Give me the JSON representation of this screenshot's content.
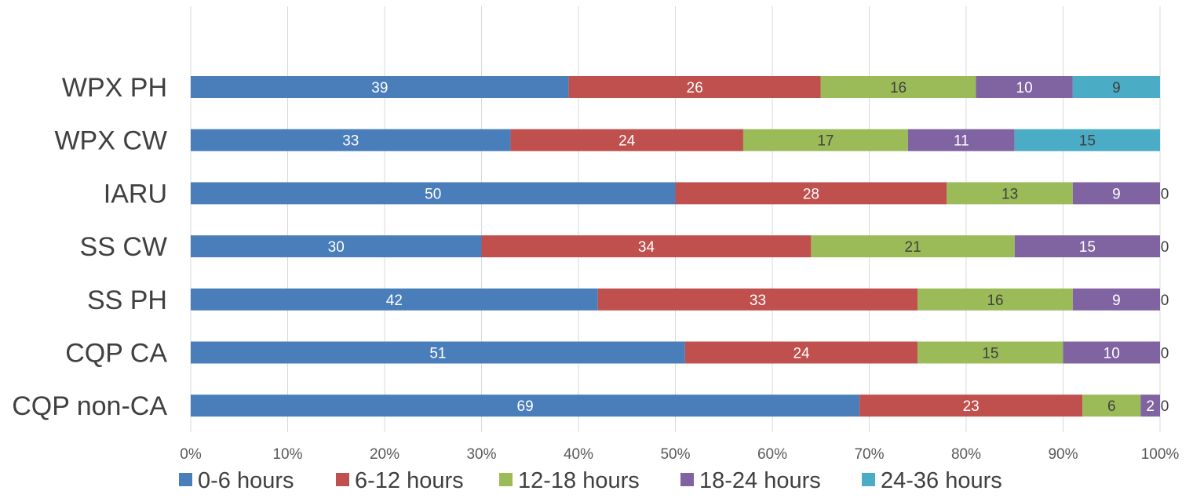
{
  "chart_data": {
    "type": "bar",
    "orientation": "horizontal",
    "stacking": "percent",
    "categories": [
      "WPX PH",
      "WPX CW",
      "IARU",
      "SS CW",
      "SS PH",
      "CQP CA",
      "CQP non-CA"
    ],
    "series": [
      {
        "name": "0-6 hours",
        "color": "#4a7ebb",
        "label_color": "#ffffff",
        "values": [
          39,
          33,
          50,
          30,
          42,
          51,
          69
        ]
      },
      {
        "name": "6-12 hours",
        "color": "#c0504d",
        "label_color": "#ffffff",
        "values": [
          26,
          24,
          28,
          34,
          33,
          24,
          23
        ]
      },
      {
        "name": "12-18 hours",
        "color": "#9bbb59",
        "label_color": "#404040",
        "values": [
          16,
          17,
          13,
          21,
          16,
          15,
          6
        ]
      },
      {
        "name": "18-24 hours",
        "color": "#8064a2",
        "label_color": "#ffffff",
        "values": [
          10,
          11,
          9,
          15,
          9,
          10,
          2
        ]
      },
      {
        "name": "24-36 hours",
        "color": "#4bacc6",
        "label_color": "#404040",
        "values": [
          9,
          15,
          0,
          0,
          0,
          0,
          0
        ]
      }
    ],
    "x_ticks": [
      "0%",
      "10%",
      "20%",
      "30%",
      "40%",
      "50%",
      "60%",
      "70%",
      "80%",
      "90%",
      "100%"
    ],
    "xlim": [
      0,
      100
    ],
    "grid": true,
    "legend_position": "bottom",
    "title": "",
    "xlabel": "",
    "ylabel": ""
  }
}
